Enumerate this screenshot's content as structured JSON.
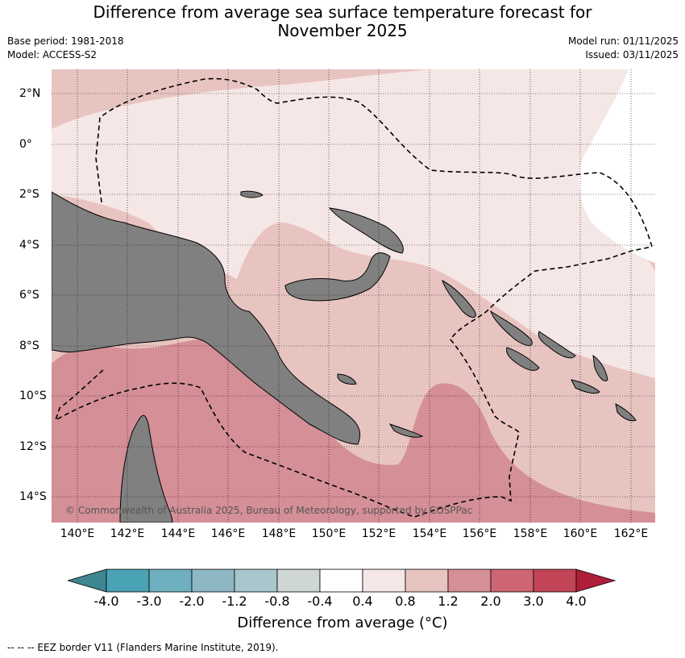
{
  "header": {
    "title_line1": "Difference from average sea surface temperature forecast for",
    "title_line2": "November 2025",
    "base_period": "Base period: 1981-2018",
    "model": "Model: ACCESS-S2",
    "model_run": "Model run: 01/11/2025",
    "issued": "Issued: 03/11/2025"
  },
  "map": {
    "lat_labels": [
      "2°N",
      "0°",
      "2°S",
      "4°S",
      "6°S",
      "8°S",
      "10°S",
      "12°S",
      "14°S"
    ],
    "lon_labels": [
      "140°E",
      "142°E",
      "144°E",
      "146°E",
      "148°E",
      "150°E",
      "152°E",
      "154°E",
      "156°E",
      "158°E",
      "160°E",
      "162°E"
    ],
    "copyright": "© Commonwealth of Australia 2025, Bureau of Meteorology, supported by COSPPac",
    "land_color": "#808080"
  },
  "colorbar": {
    "title": "Difference from average (°C)",
    "ticks": [
      "-4.0",
      "-3.0",
      "-2.0",
      "-1.2",
      "-0.8",
      "-0.4",
      "0.4",
      "0.8",
      "1.2",
      "2.0",
      "3.0",
      "4.0"
    ],
    "colors": [
      "#3f8592",
      "#4aa3b4",
      "#6eb0bf",
      "#8db8c3",
      "#a8c6cb",
      "#cfd6d6",
      "#ffffff",
      "#f5e7e5",
      "#e8c4c1",
      "#d58f97",
      "#cd6672",
      "#c14556",
      "#b11e3a"
    ]
  },
  "footer": {
    "legend_text": "--  --  -- EEZ border V11 (Flanders Marine Institute, 2019)."
  }
}
